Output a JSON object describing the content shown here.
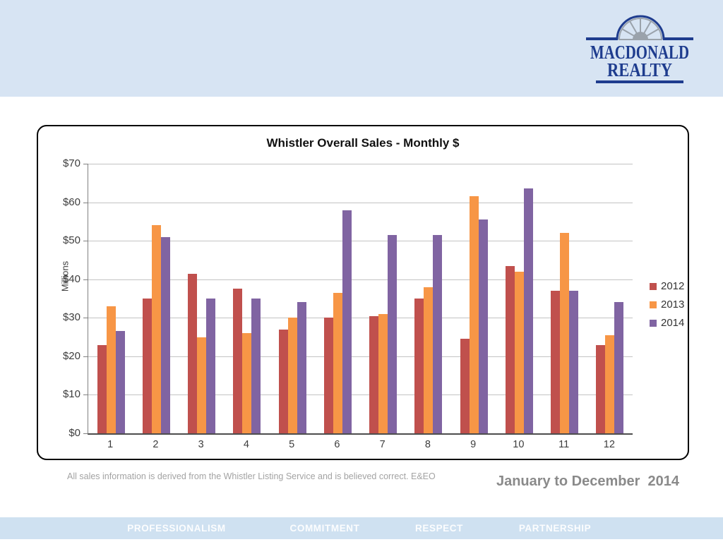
{
  "header": {
    "logo": {
      "line1": "MACDONALD",
      "line2": "REALTY"
    }
  },
  "chart_data": {
    "type": "bar",
    "title": "Whistler Overall Sales - Monthly $",
    "ylabel": "Millions",
    "xlabel": "",
    "categories": [
      "1",
      "2",
      "3",
      "4",
      "5",
      "6",
      "7",
      "8",
      "9",
      "10",
      "11",
      "12"
    ],
    "series": [
      {
        "name": "2012",
        "color": "#c0504d",
        "values": [
          23,
          35,
          41.5,
          37.5,
          27,
          30,
          30.5,
          35,
          24.5,
          43.5,
          37,
          23
        ]
      },
      {
        "name": "2013",
        "color": "#f79646",
        "values": [
          33,
          54,
          25,
          26,
          30,
          36.5,
          31,
          38,
          61.5,
          42,
          52,
          25.5
        ]
      },
      {
        "name": "2014",
        "color": "#8064a2",
        "values": [
          26.5,
          51,
          35,
          35,
          34,
          58,
          51.5,
          51.5,
          55.5,
          63.5,
          37,
          34
        ]
      }
    ],
    "ylim": [
      0,
      70
    ],
    "ytick_step": 10,
    "ytick_labels": [
      "$0",
      "$10",
      "$20",
      "$30",
      "$40",
      "$50",
      "$60",
      "$70"
    ],
    "grid": true,
    "legend_position": "right"
  },
  "footnote": "All sales information is derived from the Whistler Listing Service and is believed correct. E&EO",
  "subtitle": "January to December  2014",
  "footer": {
    "items": [
      "PROFESSIONALISM",
      "COMMITMENT",
      "RESPECT",
      "PARTNERSHIP"
    ],
    "centers": [
      250,
      460,
      622,
      786
    ]
  },
  "colors": {
    "band": "#d7e4f3",
    "footer_band": "#cfe1f1",
    "logo_navy": "#1e3c8e",
    "logo_gray": "#9aa2ab",
    "gridline": "#c3c3c3"
  }
}
